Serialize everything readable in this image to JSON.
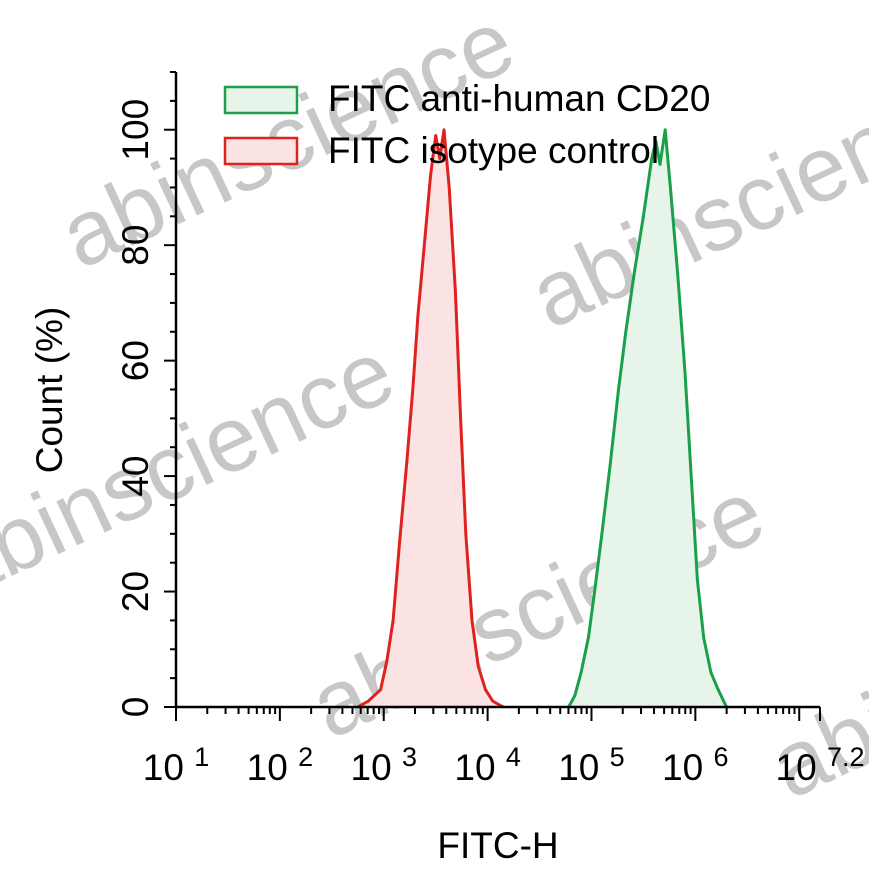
{
  "watermark": "abinscience",
  "chart_data": {
    "type": "area",
    "xlabel": "FITC-H",
    "ylabel": "Count  (%)",
    "x_scale": "log10",
    "xlim": [
      1,
      7.2
    ],
    "ylim": [
      0,
      110
    ],
    "x_ticks": [
      {
        "pos": 1,
        "base": "10",
        "exp": "1"
      },
      {
        "pos": 2,
        "base": "10",
        "exp": "2"
      },
      {
        "pos": 3,
        "base": "10",
        "exp": "3"
      },
      {
        "pos": 4,
        "base": "10",
        "exp": "4"
      },
      {
        "pos": 5,
        "base": "10",
        "exp": "5"
      },
      {
        "pos": 6,
        "base": "10",
        "exp": "6"
      },
      {
        "pos": 7.2,
        "base": "10",
        "exp": "7.2"
      }
    ],
    "y_ticks": [
      0,
      20,
      40,
      60,
      80,
      100
    ],
    "legend": {
      "placement": "top-center",
      "entries": [
        "FITC anti-human CD20",
        "FITC isotype control"
      ]
    },
    "series": [
      {
        "name": "FITC anti-human CD20",
        "color": "#1aa04a",
        "fill": "#e6f4ea",
        "points": [
          [
            4.78,
            0
          ],
          [
            4.84,
            2
          ],
          [
            4.9,
            6
          ],
          [
            4.97,
            12
          ],
          [
            5.03,
            20
          ],
          [
            5.1,
            30
          ],
          [
            5.18,
            42
          ],
          [
            5.26,
            55
          ],
          [
            5.33,
            65
          ],
          [
            5.41,
            75
          ],
          [
            5.5,
            85
          ],
          [
            5.58,
            95
          ],
          [
            5.62,
            98
          ],
          [
            5.66,
            94
          ],
          [
            5.71,
            100
          ],
          [
            5.76,
            90
          ],
          [
            5.83,
            75
          ],
          [
            5.9,
            58
          ],
          [
            5.96,
            40
          ],
          [
            6.02,
            22
          ],
          [
            6.08,
            12
          ],
          [
            6.15,
            6
          ],
          [
            6.22,
            3
          ],
          [
            6.3,
            0
          ]
        ]
      },
      {
        "name": "FITC isotype control",
        "color": "#e0221f",
        "fill": "#fbe3e3",
        "points": [
          [
            2.75,
            0
          ],
          [
            2.85,
            1
          ],
          [
            2.97,
            3
          ],
          [
            3.03,
            8
          ],
          [
            3.09,
            15
          ],
          [
            3.15,
            28
          ],
          [
            3.22,
            42
          ],
          [
            3.28,
            55
          ],
          [
            3.33,
            68
          ],
          [
            3.39,
            80
          ],
          [
            3.45,
            92
          ],
          [
            3.5,
            99
          ],
          [
            3.54,
            95
          ],
          [
            3.58,
            100
          ],
          [
            3.63,
            90
          ],
          [
            3.69,
            72
          ],
          [
            3.74,
            50
          ],
          [
            3.79,
            30
          ],
          [
            3.85,
            15
          ],
          [
            3.91,
            7
          ],
          [
            3.98,
            3
          ],
          [
            4.05,
            1
          ],
          [
            4.15,
            0
          ]
        ]
      }
    ]
  }
}
